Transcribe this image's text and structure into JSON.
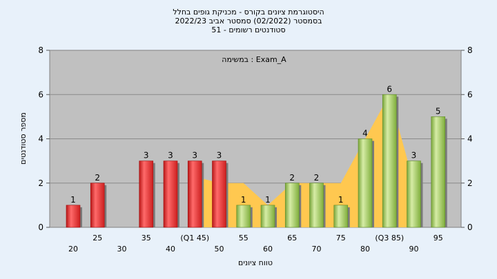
{
  "title": {
    "line1": "היסטוגרמת ציונים בקורס - מכניקת גופים בחלל",
    "line2": "בסמסטר  (02/2022)  סמסטר אביב 2022/23",
    "line3": "סטודנטים רשומים - 51"
  },
  "annotation": "במשימה : Exam_A",
  "chart_data": {
    "type": "bar",
    "categories": [
      "20",
      "25",
      "30",
      "35",
      "40",
      "(Q1 45)",
      "50",
      "55",
      "60",
      "65",
      "70",
      "75",
      "80",
      "(Q3 85)",
      "90",
      "95"
    ],
    "values": [
      1,
      2,
      0,
      3,
      3,
      3,
      3,
      1,
      1,
      2,
      2,
      1,
      4,
      6,
      3,
      5
    ],
    "bar_colors": [
      "red",
      "red",
      "red",
      "red",
      "red",
      "red",
      "red",
      "green",
      "green",
      "green",
      "green",
      "green",
      "green",
      "green",
      "green",
      "green"
    ],
    "area_values": [
      null,
      null,
      null,
      null,
      null,
      2.3,
      2,
      2,
      1,
      2,
      2,
      2,
      4,
      6,
      2,
      null
    ],
    "ylabel": "מספר סטודנטים",
    "xlabel": "טווח ציונים",
    "ylim": [
      0,
      8
    ],
    "yticks": [
      0,
      2,
      4,
      6,
      8
    ],
    "grid": true
  },
  "colors": {
    "background": "#e8f1fa",
    "plot": "#c0c0c0",
    "area": "#ffc850",
    "red_bar": "#e02a2a",
    "green_bar": "#8cba4a"
  }
}
